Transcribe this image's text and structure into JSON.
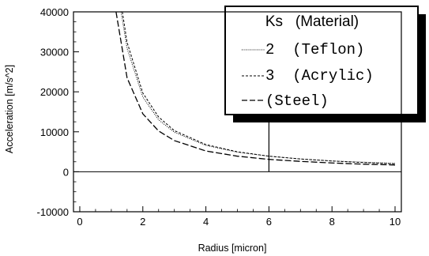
{
  "chart_data": {
    "type": "line",
    "title": "",
    "xlabel": "Radius [micron]",
    "ylabel": "Acceleration [m/s^2]",
    "xlim": [
      -0.2,
      10.2
    ],
    "ylim": [
      -10000,
      40000
    ],
    "xticks": [
      0,
      2,
      4,
      6,
      8,
      10
    ],
    "yticks": [
      -10000,
      0,
      10000,
      20000,
      30000,
      40000
    ],
    "xtick_labels": [
      "0",
      "2",
      "4",
      "6",
      "8",
      "10"
    ],
    "ytick_labels": [
      "-10000",
      "0",
      "10000",
      "20000",
      "30000",
      "40000"
    ],
    "grid": false,
    "legend_position": "top-right",
    "legend_title": "Ks   (Material)",
    "series": [
      {
        "name": "2  (Teflon)",
        "style": "dotted",
        "x": [
          1.31,
          1.5,
          2,
          2.5,
          3,
          4,
          5,
          6,
          7,
          8,
          9,
          10
        ],
        "y": [
          40000,
          30900,
          18700,
          13000,
          9900,
          6600,
          4900,
          3900,
          3200,
          2700,
          2400,
          2100
        ]
      },
      {
        "name": "3  (Acrylic)",
        "style": "dashed",
        "x": [
          1.35,
          1.5,
          2,
          2.5,
          3,
          4,
          5,
          6,
          7,
          8,
          9,
          10
        ],
        "y": [
          40000,
          32400,
          19700,
          13700,
          10300,
          6800,
          5000,
          3900,
          3200,
          2700,
          2300,
          2000
        ]
      },
      {
        "name": "(Steel)",
        "style": "long-dash",
        "x": [
          1.15,
          1.5,
          2,
          2.5,
          3,
          4,
          5,
          6,
          7,
          8,
          9,
          10
        ],
        "y": [
          40000,
          23500,
          14500,
          10200,
          7800,
          5200,
          3900,
          3100,
          2600,
          2200,
          1900,
          1700
        ]
      }
    ],
    "annotations": [
      {
        "type": "vertical-line",
        "x": 6,
        "y_from": 0,
        "y_to": 12500
      }
    ]
  }
}
